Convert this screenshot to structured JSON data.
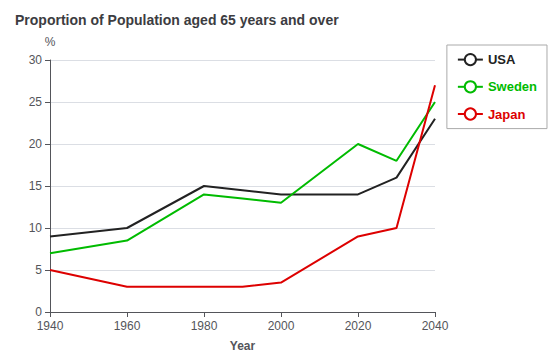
{
  "chart_data": {
    "type": "line",
    "title": "Proportion of Population aged 65 years and over",
    "xlabel": "Year",
    "ylabel": "%",
    "x": [
      1940,
      1960,
      1980,
      1990,
      2000,
      2020,
      2030,
      2040
    ],
    "series": [
      {
        "name": "USA",
        "color": "#222222",
        "values": [
          9,
          10,
          15,
          14.5,
          14,
          14,
          16,
          23
        ]
      },
      {
        "name": "Sweden",
        "color": "#00bb00",
        "values": [
          7,
          8.5,
          14,
          13.5,
          13,
          20,
          18,
          25
        ]
      },
      {
        "name": "Japan",
        "color": "#dd0000",
        "values": [
          5,
          3,
          3,
          3,
          3.5,
          9,
          10,
          27
        ]
      }
    ],
    "xlim": [
      1940,
      2040
    ],
    "ylim": [
      0,
      30
    ],
    "xticks": [
      1940,
      1960,
      1980,
      2000,
      2020,
      2040
    ],
    "yticks": [
      0,
      5,
      10,
      15,
      20,
      25,
      30
    ],
    "grid": "y",
    "legend": "right"
  }
}
